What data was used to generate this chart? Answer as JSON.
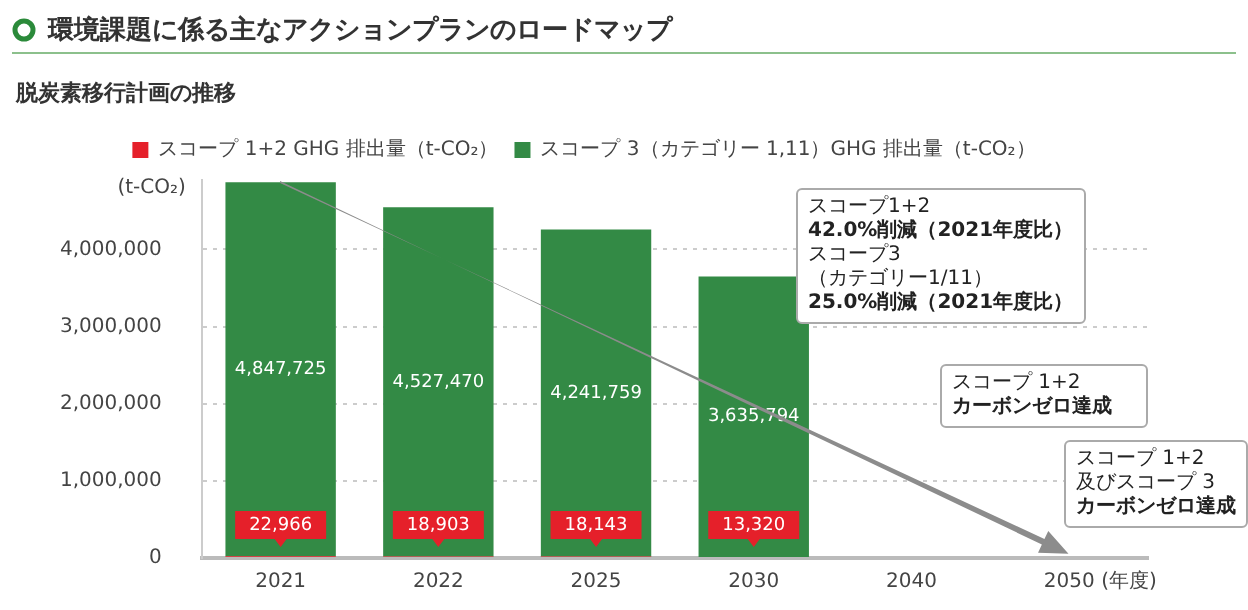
{
  "chart_data": {
    "type": "bar",
    "title": "環境課題に係る主なアクションプランのロードマップ",
    "subtitle": "脱炭素移行計画の推移",
    "ylabel": "(t-CO₂)",
    "xlabel": "(年度)",
    "categories": [
      "2021",
      "2022",
      "2025",
      "2030",
      "2040",
      "2050"
    ],
    "series": [
      {
        "name": "スコープ 1+2 GHG 排出量（t-CO₂）",
        "color": "#e5202a",
        "values": [
          22966,
          18903,
          18143,
          13320,
          null,
          null
        ],
        "value_labels": [
          "22,966",
          "18,903",
          "18,143",
          "13,320",
          null,
          null
        ]
      },
      {
        "name": "スコープ 3（カテゴリー 1,11）GHG 排出量（t-CO₂）",
        "color": "#338a45",
        "values": [
          4847725,
          4527470,
          4241759,
          3635794,
          null,
          null
        ],
        "value_labels": [
          "4,847,725",
          "4,527,470",
          "4,241,759",
          "3,635,794",
          null,
          null
        ]
      }
    ],
    "stacked": true,
    "ylim": [
      0,
      4900000
    ],
    "yticks": [
      0,
      {
        "value": 1000000,
        "label": "1,000,000"
      },
      {
        "value": 2000000,
        "label": "2,000,000"
      },
      {
        "value": 3000000,
        "label": "3,000,000"
      },
      {
        "value": 4000000,
        "label": "4,000,000"
      }
    ],
    "grid": "y",
    "legend": "top",
    "annotations": [
      "スコープ1+2",
      "42.0%削減（2021年度比）",
      "スコープ3",
      "（カテゴリー1/11）",
      "25.0%削減（2021年度比）",
      "スコープ 1+2",
      "カーボンゼロ達成",
      "スコープ 1+2",
      "及びスコープ 3",
      "カーボンゼロ達成"
    ]
  }
}
